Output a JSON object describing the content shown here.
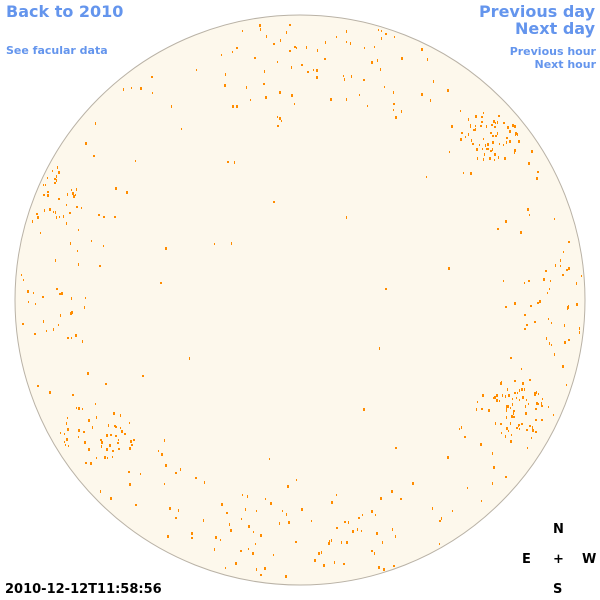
{
  "nav": {
    "back_label": "Back to 2010",
    "facular_label": "See facular data",
    "prev_day_label": "Previous day",
    "next_day_label": "Next day",
    "prev_hour_label": "Previous hour",
    "next_hour_label": "Next hour"
  },
  "compass": {
    "north": "N",
    "east": "E",
    "center": "+",
    "west": "W",
    "south": "S"
  },
  "timestamp": "2010-12-12T11:58:56",
  "colors": {
    "link": "#6495ed",
    "disk_fill": "#fdf8ec",
    "disk_edge": "#b9b2a6",
    "facula": "#ff8c00"
  },
  "disk": {
    "regions": [
      {
        "name": "northwest-limb-cluster",
        "dx": -0.89,
        "dy": -0.38,
        "spread": 0.12,
        "count": 55
      },
      {
        "name": "northeast-cluster",
        "dx": 0.67,
        "dy": -0.58,
        "spread": 0.11,
        "count": 60
      },
      {
        "name": "southeast-cluster",
        "dx": 0.75,
        "dy": 0.38,
        "spread": 0.13,
        "count": 70
      },
      {
        "name": "southwest-cluster",
        "dx": -0.72,
        "dy": 0.47,
        "spread": 0.14,
        "count": 50
      },
      {
        "name": "south-limb-band",
        "dx": 0.0,
        "dy": 0.88,
        "spread": 0.35,
        "count": 45
      },
      {
        "name": "north-limb-band",
        "dx": 0.0,
        "dy": -0.88,
        "spread": 0.35,
        "count": 40
      },
      {
        "name": "west-limb-band",
        "dx": 0.93,
        "dy": 0.0,
        "spread": 0.2,
        "count": 25
      },
      {
        "name": "east-limb-band",
        "dx": -0.93,
        "dy": 0.05,
        "spread": 0.2,
        "count": 25
      }
    ]
  }
}
